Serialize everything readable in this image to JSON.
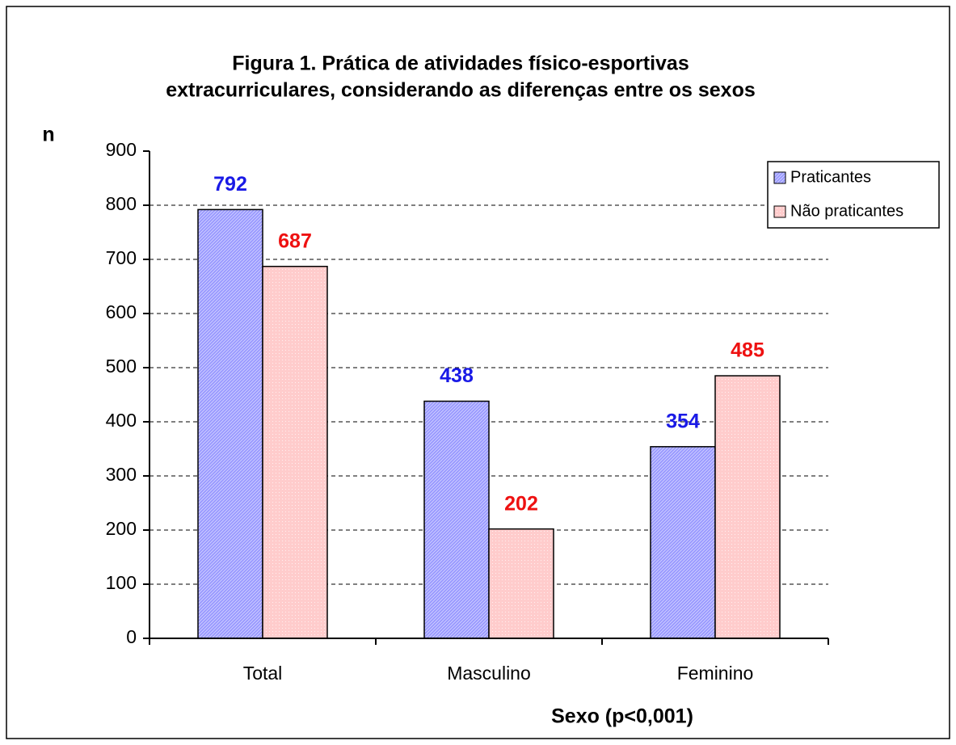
{
  "chart_data": {
    "type": "bar",
    "title": [
      "Figura 1. Prática de atividades físico-esportivas",
      "extracurriculares, considerando as diferenças entre os sexos"
    ],
    "ylabel": "n",
    "xlabel": "Sexo (p<0,001)",
    "categories": [
      "Total",
      "Masculino",
      "Feminino"
    ],
    "series": [
      {
        "name": "Praticantes",
        "color": "#9999ff",
        "label_color": "#1a1ae6",
        "values": [
          792,
          438,
          354
        ]
      },
      {
        "name": "Não praticantes",
        "color": "#ffcccc",
        "label_color": "#ee1111",
        "values": [
          687,
          202,
          485
        ]
      }
    ],
    "ylim": [
      0,
      900
    ],
    "yticks": [
      0,
      100,
      200,
      300,
      400,
      500,
      600,
      700,
      800,
      900
    ],
    "grid": true,
    "legend": "upper right"
  }
}
